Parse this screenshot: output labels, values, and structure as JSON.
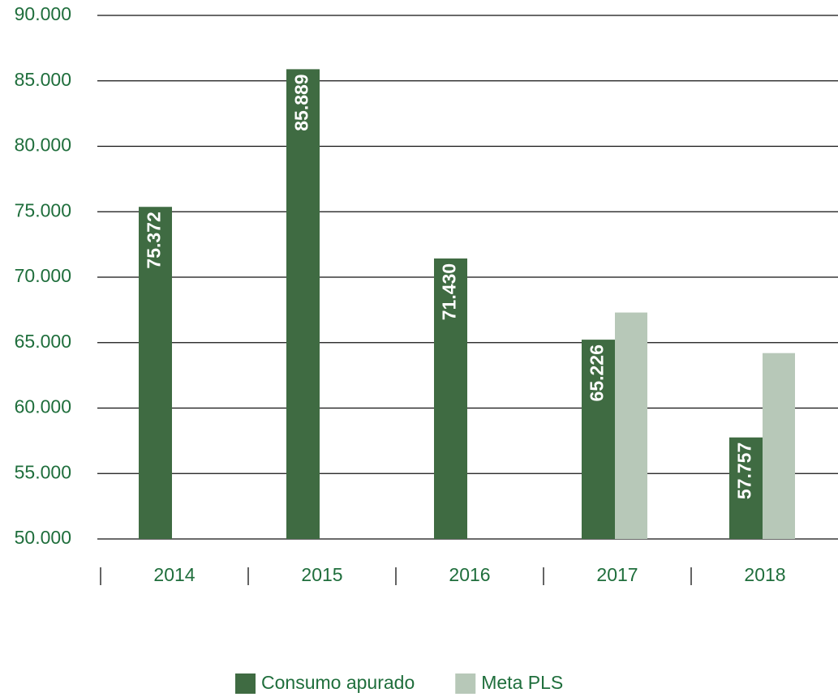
{
  "chart_data": {
    "type": "bar",
    "categories": [
      "2014",
      "2015",
      "2016",
      "2017",
      "2018"
    ],
    "series": [
      {
        "name": "Consumo apurado",
        "color": "#3f6b42",
        "values": [
          75372,
          85889,
          71430,
          65226,
          57757
        ],
        "value_labels": [
          "75.372",
          "85.889",
          "71.430",
          "65.226",
          "57.757"
        ]
      },
      {
        "name": "Meta PLS",
        "color": "#b7c8b8",
        "values": [
          null,
          null,
          null,
          67300,
          64200
        ]
      }
    ],
    "ylim": [
      50000,
      90000
    ],
    "yticks": [
      {
        "value": 50000,
        "label": "50.000"
      },
      {
        "value": 55000,
        "label": "55.000"
      },
      {
        "value": 60000,
        "label": "60.000"
      },
      {
        "value": 65000,
        "label": "65.000"
      },
      {
        "value": 70000,
        "label": "70.000"
      },
      {
        "value": 75000,
        "label": "75.000"
      },
      {
        "value": 80000,
        "label": "80.000"
      },
      {
        "value": 85000,
        "label": "85.000"
      },
      {
        "value": 90000,
        "label": "90.000"
      }
    ],
    "grid": true,
    "legend": "bottom"
  }
}
